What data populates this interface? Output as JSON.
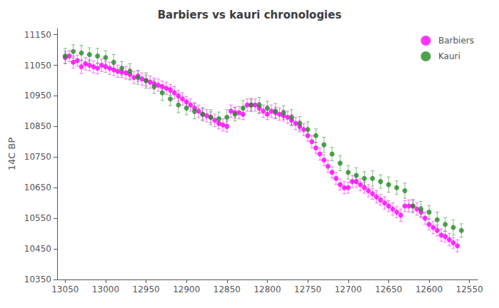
{
  "chart_data": {
    "type": "scatter",
    "title": "Barbiers vs kauri chronologies",
    "ylabel": "14C BP",
    "xlim": [
      13060,
      12540
    ],
    "ylim": [
      10350,
      11170
    ],
    "xticks": [
      13050,
      13000,
      12950,
      12900,
      12850,
      12800,
      12750,
      12700,
      12650,
      12600,
      12550
    ],
    "yticks": [
      10350,
      10450,
      10550,
      10650,
      10750,
      10850,
      10950,
      11050,
      11150
    ],
    "grid": false,
    "legend": "upper right",
    "series": [
      {
        "name": "Barbiers",
        "color": "#FF00FF",
        "marker": "circle",
        "x": [
          13050,
          13045,
          13040,
          13035,
          13030,
          13025,
          13020,
          13015,
          13010,
          13005,
          13000,
          12995,
          12990,
          12985,
          12980,
          12975,
          12970,
          12965,
          12960,
          12955,
          12950,
          12945,
          12940,
          12935,
          12930,
          12925,
          12920,
          12915,
          12910,
          12905,
          12900,
          12895,
          12890,
          12885,
          12880,
          12875,
          12870,
          12865,
          12860,
          12855,
          12850,
          12845,
          12840,
          12835,
          12830,
          12825,
          12820,
          12815,
          12810,
          12805,
          12800,
          12795,
          12790,
          12785,
          12780,
          12775,
          12770,
          12765,
          12760,
          12755,
          12750,
          12745,
          12740,
          12735,
          12730,
          12725,
          12720,
          12715,
          12710,
          12705,
          12700,
          12695,
          12690,
          12685,
          12680,
          12675,
          12670,
          12665,
          12660,
          12655,
          12650,
          12645,
          12640,
          12635,
          12630,
          12625,
          12620,
          12615,
          12610,
          12605,
          12600,
          12595,
          12590,
          12585,
          12580,
          12575,
          12570,
          12565
        ],
        "values": [
          11075,
          11080,
          11060,
          11065,
          11045,
          11055,
          11050,
          11045,
          11040,
          11050,
          11045,
          11040,
          11035,
          11030,
          11028,
          11025,
          11020,
          11010,
          11015,
          11005,
          11000,
          10995,
          10990,
          10985,
          10980,
          10975,
          10970,
          10960,
          10950,
          10940,
          10930,
          10920,
          10910,
          10900,
          10890,
          10885,
          10880,
          10870,
          10860,
          10855,
          10850,
          10900,
          10895,
          10895,
          10890,
          10920,
          10920,
          10920,
          10910,
          10900,
          10890,
          10900,
          10895,
          10890,
          10885,
          10880,
          10870,
          10860,
          10850,
          10840,
          10820,
          10800,
          10780,
          10760,
          10740,
          10720,
          10700,
          10680,
          10660,
          10650,
          10650,
          10670,
          10670,
          10660,
          10650,
          10640,
          10630,
          10620,
          10610,
          10600,
          10590,
          10580,
          10570,
          10560,
          10590,
          10590,
          10590,
          10580,
          10570,
          10550,
          10530,
          10520,
          10510,
          10495,
          10490,
          10480,
          10470,
          10460
        ],
        "yerr": [
          20,
          18,
          20,
          18,
          22,
          20,
          18,
          20,
          18,
          20,
          18,
          20,
          18,
          20,
          18,
          20,
          18,
          20,
          18,
          20,
          18,
          20,
          18,
          20,
          18,
          20,
          18,
          20,
          18,
          20,
          18,
          20,
          18,
          20,
          18,
          20,
          18,
          20,
          18,
          20,
          18,
          20,
          18,
          20,
          18,
          20,
          18,
          20,
          18,
          20,
          18,
          20,
          18,
          20,
          18,
          20,
          18,
          20,
          18,
          20,
          18,
          20,
          18,
          20,
          18,
          20,
          18,
          20,
          18,
          20,
          18,
          20,
          18,
          20,
          18,
          20,
          18,
          20,
          18,
          20,
          18,
          20,
          18,
          20,
          18,
          20,
          18,
          20,
          18,
          20,
          18,
          20,
          18,
          20,
          18,
          20,
          18,
          20
        ]
      },
      {
        "name": "Kauri",
        "color": "#228B22",
        "marker": "circle",
        "x": [
          13050,
          13040,
          13030,
          13020,
          13010,
          13000,
          12990,
          12980,
          12970,
          12960,
          12950,
          12940,
          12930,
          12920,
          12910,
          12900,
          12890,
          12880,
          12870,
          12860,
          12850,
          12840,
          12830,
          12820,
          12810,
          12800,
          12790,
          12780,
          12770,
          12760,
          12750,
          12740,
          12730,
          12720,
          12710,
          12700,
          12690,
          12680,
          12670,
          12660,
          12650,
          12640,
          12630,
          12620,
          12610,
          12600,
          12590,
          12580,
          12570,
          12560
        ],
        "values": [
          11080,
          11095,
          11090,
          11085,
          11080,
          11075,
          11060,
          11040,
          11030,
          11010,
          11000,
          10980,
          10960,
          10940,
          10920,
          10910,
          10900,
          10890,
          10880,
          10875,
          10880,
          10890,
          10910,
          10920,
          10920,
          10910,
          10900,
          10895,
          10880,
          10860,
          10840,
          10820,
          10790,
          10760,
          10730,
          10700,
          10690,
          10680,
          10680,
          10670,
          10660,
          10650,
          10640,
          10590,
          10580,
          10570,
          10545,
          10530,
          10520,
          10510
        ],
        "yerr": [
          25,
          22,
          25,
          22,
          25,
          22,
          25,
          22,
          25,
          22,
          25,
          22,
          25,
          22,
          25,
          22,
          25,
          22,
          25,
          22,
          25,
          22,
          25,
          22,
          25,
          22,
          25,
          22,
          25,
          22,
          25,
          22,
          25,
          22,
          25,
          22,
          25,
          22,
          25,
          22,
          25,
          22,
          25,
          22,
          25,
          22,
          25,
          22,
          25,
          22
        ]
      }
    ]
  }
}
